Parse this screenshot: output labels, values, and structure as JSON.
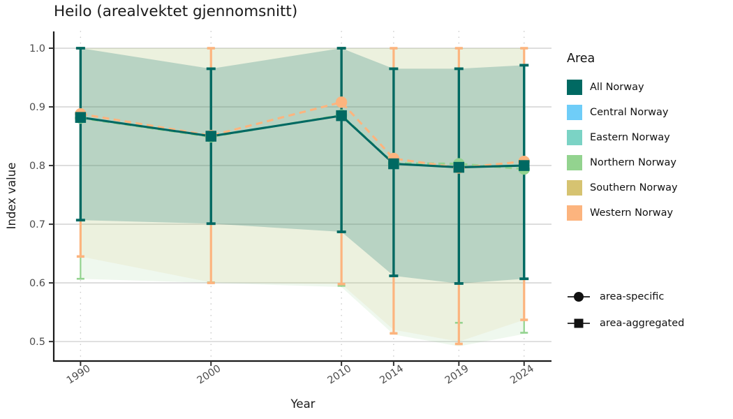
{
  "chart_data": {
    "type": "line",
    "title": "Heilo (arealvektet gjennomsnitt)",
    "xlabel": "Year",
    "ylabel": "Index value",
    "x": [
      1990,
      2000,
      2010,
      2014,
      2019,
      2024
    ],
    "x_tick_labels": [
      "1990",
      "2000",
      "2010",
      "2014",
      "2019",
      "2024"
    ],
    "yticks": [
      0.5,
      0.6,
      0.7,
      0.8,
      0.9,
      1.0
    ],
    "y_tick_labels": [
      "0.5",
      "0.6",
      "0.7",
      "0.8",
      "0.9",
      "1.0"
    ],
    "xlim": [
      1988.0,
      2026.1
    ],
    "ylim": [
      0.468,
      1.0286
    ],
    "grid": {
      "horizontal": "solid",
      "vertical": "dotted"
    },
    "series": [
      {
        "name": "Northern Norway",
        "role": "area-specific",
        "color": "#93d38f",
        "line": "dashed",
        "marker": "circle",
        "ci_bar_width": 2.2,
        "values": [
          0.881,
          0.849,
          0.886,
          0.804,
          0.803,
          0.794
        ],
        "ci_low": [
          0.607,
          0.601,
          0.595,
          0.514,
          0.532,
          0.515
        ],
        "ci_high": [
          1.0,
          1.0,
          1.0,
          1.0,
          1.0,
          1.0
        ]
      },
      {
        "name": "Western Norway",
        "role": "area-specific",
        "color": "#fcb47e",
        "line": "dashed",
        "marker": "circle",
        "ci_bar_width": 3.2,
        "values": [
          0.888,
          0.851,
          0.908,
          0.812,
          0.796,
          0.807
        ],
        "ci_low": [
          0.645,
          0.6,
          0.598,
          0.514,
          0.496,
          0.537
        ],
        "ci_high": [
          1.0,
          1.0,
          1.0,
          1.0,
          1.0,
          1.0
        ]
      },
      {
        "name": "All Norway",
        "role": "area-aggregated",
        "color": "#006962",
        "line": "solid",
        "marker": "square",
        "ci_bar_width": 3.4,
        "values": [
          0.882,
          0.85,
          0.885,
          0.803,
          0.797,
          0.8
        ],
        "ci_low": [
          0.707,
          0.701,
          0.687,
          0.612,
          0.599,
          0.607
        ],
        "ci_high": [
          1.0,
          0.965,
          1.0,
          0.965,
          0.965,
          0.971
        ]
      }
    ],
    "ribbons": [
      {
        "name": "northern-norway-ci-band",
        "color": "rgba(147,211,143,0.15)",
        "lower": [
          0.607,
          0.6,
          0.593,
          0.512,
          0.492,
          0.513
        ],
        "upper": [
          1.0,
          1.0,
          1.0,
          1.0,
          1.0,
          1.0
        ]
      },
      {
        "name": "western-norway-ci-band",
        "color": "rgba(214,195,113,0.13)",
        "lower": [
          0.645,
          0.601,
          0.598,
          0.52,
          0.5,
          0.537
        ],
        "upper": [
          1.0,
          1.0,
          1.0,
          1.0,
          1.0,
          1.0
        ]
      },
      {
        "name": "all-norway-ci-band",
        "color": "rgba(0,105,98,0.22)",
        "lower": [
          0.707,
          0.701,
          0.687,
          0.612,
          0.599,
          0.607
        ],
        "upper": [
          1.0,
          0.965,
          1.0,
          0.965,
          0.965,
          0.971
        ]
      }
    ]
  },
  "legend": {
    "title": "Area",
    "items": [
      {
        "label": "All Norway",
        "color": "#006962"
      },
      {
        "label": "Central Norway",
        "color": "#6fcdf8"
      },
      {
        "label": "Eastern Norway",
        "color": "#7bd3c5"
      },
      {
        "label": "Northern Norway",
        "color": "#93d38f"
      },
      {
        "label": "Southern Norway",
        "color": "#d6c371"
      },
      {
        "label": "Western Norway",
        "color": "#fcb47e"
      }
    ],
    "shape_items": [
      {
        "label": "area-specific",
        "shape": "circle"
      },
      {
        "label": "area-aggregated",
        "shape": "square"
      }
    ]
  }
}
